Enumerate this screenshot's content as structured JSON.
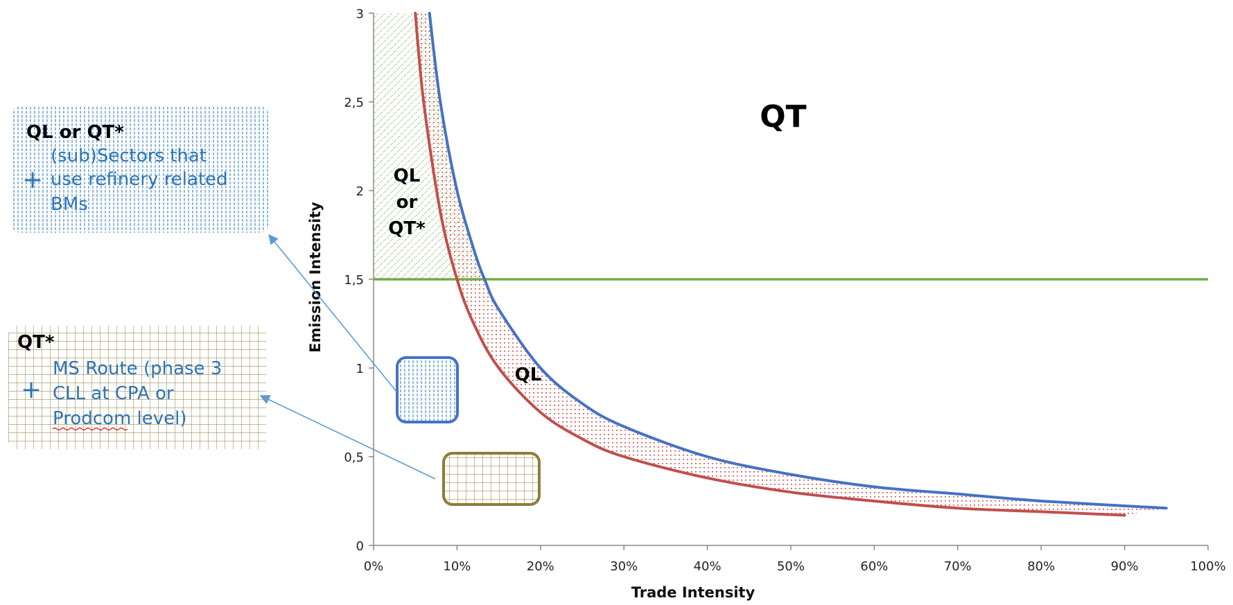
{
  "chart_data": {
    "type": "line",
    "title": "",
    "xlabel": "Trade Intensity",
    "ylabel": "Emission Intensity",
    "xlim": [
      0,
      100
    ],
    "ylim": [
      0,
      3
    ],
    "x_unit": "%",
    "x_ticks": [
      "0%",
      "10%",
      "20%",
      "30%",
      "40%",
      "50%",
      "60%",
      "70%",
      "80%",
      "90%",
      "100%"
    ],
    "y_ticks": [
      "0",
      "0,5",
      "1",
      "1,5",
      "2",
      "2,5",
      "3"
    ],
    "grid": false,
    "legend": "none",
    "series": [
      {
        "color": "#4472C4",
        "x": [
          6.7,
          8,
          10,
          12,
          13.3,
          15,
          20,
          25,
          30,
          40,
          50,
          60,
          70,
          80,
          95
        ],
        "y": [
          3.0,
          2.5,
          2.0,
          1.67,
          1.5,
          1.33,
          1.0,
          0.8,
          0.67,
          0.5,
          0.4,
          0.33,
          0.29,
          0.25,
          0.21
        ]
      },
      {
        "color": "#C0504D",
        "x": [
          5,
          6,
          8,
          10,
          12,
          15,
          20,
          25,
          30,
          40,
          50,
          60,
          70,
          80,
          90
        ],
        "y": [
          3.0,
          2.5,
          1.88,
          1.5,
          1.25,
          1.0,
          0.75,
          0.6,
          0.5,
          0.38,
          0.3,
          0.25,
          0.21,
          0.19,
          0.17
        ]
      },
      {
        "color": "#70AD47",
        "x": [
          0,
          100
        ],
        "y": [
          1.5,
          1.5
        ]
      }
    ],
    "annotations": {
      "qt_label": "QT",
      "ql_or_qt_lines": [
        "QL",
        "or",
        "QT*"
      ],
      "ql_label": "QL"
    }
  },
  "callouts": {
    "refinery": {
      "title": "QL or QT*",
      "plus": "+",
      "lines": [
        "(sub)Sectors that",
        "use refinery related",
        "BMs"
      ]
    },
    "ms_route": {
      "title": "QT*",
      "plus": "+",
      "lines": [
        "MS Route (phase 3",
        "CLL at CPA or",
        "Prodcom level)"
      ]
    }
  },
  "colors": {
    "blue": "#4472C4",
    "red": "#C0504D",
    "green": "#70AD47",
    "olive": "#8B7D3A",
    "text_blue": "#2E74B5"
  }
}
